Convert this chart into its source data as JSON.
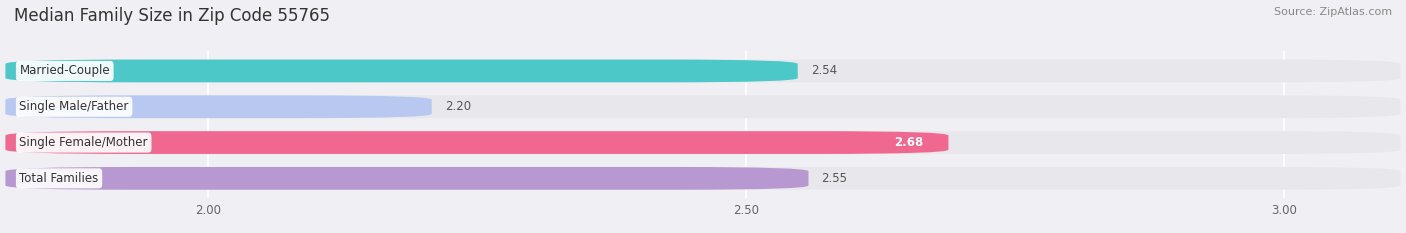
{
  "title": "Median Family Size in Zip Code 55765",
  "source": "Source: ZipAtlas.com",
  "categories": [
    "Married-Couple",
    "Single Male/Father",
    "Single Female/Mother",
    "Total Families"
  ],
  "values": [
    2.54,
    2.2,
    2.68,
    2.55
  ],
  "bar_colors": [
    "#4dc8c8",
    "#b8c8f0",
    "#f06890",
    "#b898d0"
  ],
  "bar_bg_color": "#e8e8ec",
  "xlim_min": 1.82,
  "xlim_max": 3.1,
  "xticks": [
    2.0,
    2.5,
    3.0
  ],
  "xtick_labels": [
    "2.00",
    "2.50",
    "3.00"
  ],
  "bar_height": 0.62,
  "label_fontsize": 8.5,
  "value_fontsize": 8.5,
  "title_fontsize": 12,
  "source_fontsize": 8,
  "bg_color": "#f0f0f4",
  "grid_color": "#ffffff",
  "value_colors": [
    "#555555",
    "#555555",
    "#ffffff",
    "#555555"
  ],
  "value_bold": [
    false,
    false,
    true,
    false
  ],
  "label_box_color": "#ffffff",
  "label_text_color": "#333333"
}
